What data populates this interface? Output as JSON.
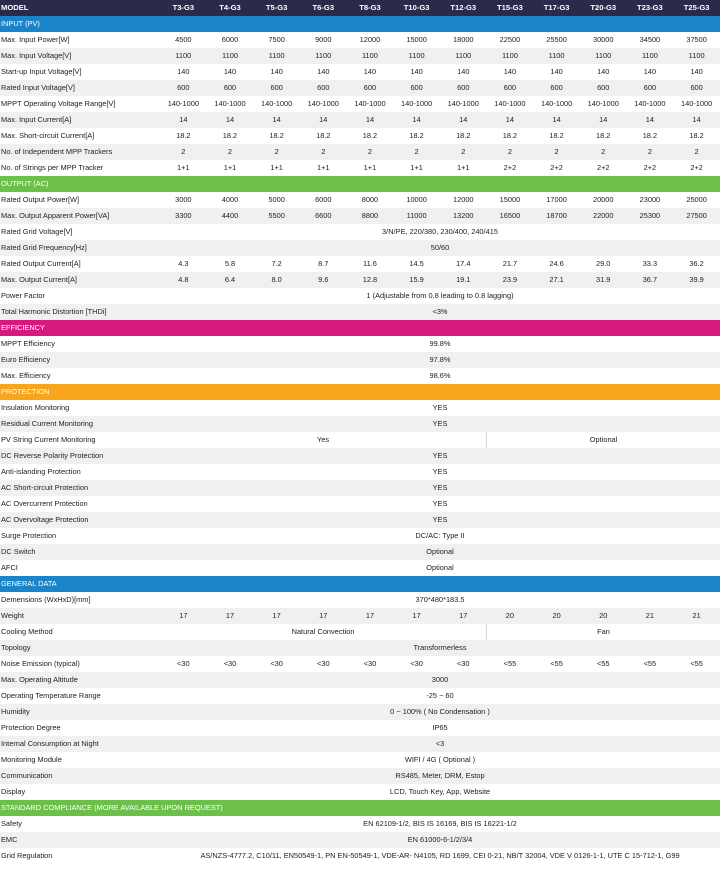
{
  "models": [
    "T3-G3",
    "T4-G3",
    "T5-G3",
    "T6-G3",
    "T8-G3",
    "T10-G3",
    "T12-G3",
    "T15-G3",
    "T17-G3",
    "T20-G3",
    "T23-G3",
    "T25-G3"
  ],
  "colors": {
    "input": "#1a84c9",
    "output": "#6cc04a",
    "efficiency": "#d6197f",
    "protection": "#f7a51c",
    "general": "#1a84c9",
    "compliance": "#6cc04a",
    "header": "#2a2a4a"
  },
  "rows": [
    {
      "t": "head",
      "label": "MODEL"
    },
    {
      "t": "sec",
      "label": "INPUT (PV)",
      "color": "#1a84c9"
    },
    {
      "t": "v",
      "label": "Max. Input Power[W]",
      "vals": [
        "4500",
        "6000",
        "7500",
        "9000",
        "12000",
        "15000",
        "18000",
        "22500",
        "25500",
        "30000",
        "34500",
        "37500"
      ]
    },
    {
      "t": "v",
      "label": "Max. Input Voltage[V]",
      "vals": [
        "1100",
        "1100",
        "1100",
        "1100",
        "1100",
        "1100",
        "1100",
        "1100",
        "1100",
        "1100",
        "1100",
        "1100"
      ]
    },
    {
      "t": "v",
      "label": "Start-up Input Voltage[V]",
      "vals": [
        "140",
        "140",
        "140",
        "140",
        "140",
        "140",
        "140",
        "140",
        "140",
        "140",
        "140",
        "140"
      ]
    },
    {
      "t": "v",
      "label": "Rated Input Voltage[V]",
      "vals": [
        "600",
        "600",
        "600",
        "600",
        "600",
        "600",
        "600",
        "600",
        "600",
        "600",
        "600",
        "600"
      ]
    },
    {
      "t": "v",
      "label": "MPPT Operating Voltage Range[V]",
      "vals": [
        "140-1000",
        "140-1000",
        "140-1000",
        "140-1000",
        "140-1000",
        "140-1000",
        "140-1000",
        "140-1000",
        "140-1000",
        "140-1000",
        "140-1000",
        "140-1000"
      ]
    },
    {
      "t": "v",
      "label": "Max. Input Current[A]",
      "vals": [
        "14",
        "14",
        "14",
        "14",
        "14",
        "14",
        "14",
        "14",
        "14",
        "14",
        "14",
        "14"
      ]
    },
    {
      "t": "v",
      "label": "Max. Short-circuit Current[A]",
      "vals": [
        "18.2",
        "18.2",
        "18.2",
        "18.2",
        "18.2",
        "18.2",
        "18.2",
        "18.2",
        "18.2",
        "18.2",
        "18.2",
        "18.2"
      ]
    },
    {
      "t": "v",
      "label": "No. of Independent MPP Trackers",
      "vals": [
        "2",
        "2",
        "2",
        "2",
        "2",
        "2",
        "2",
        "2",
        "2",
        "2",
        "2",
        "2"
      ]
    },
    {
      "t": "v",
      "label": "No. of Strings per MPP Tracker",
      "vals": [
        "1+1",
        "1+1",
        "1+1",
        "1+1",
        "1+1",
        "1+1",
        "1+1",
        "2+2",
        "2+2",
        "2+2",
        "2+2",
        "2+2"
      ]
    },
    {
      "t": "sec",
      "label": "OUTPUT (AC)",
      "color": "#6cc04a"
    },
    {
      "t": "v",
      "label": "Rated Output Power[W]",
      "vals": [
        "3000",
        "4000",
        "5000",
        "6000",
        "8000",
        "10000",
        "12000",
        "15000",
        "17000",
        "20000",
        "23000",
        "25000"
      ]
    },
    {
      "t": "v",
      "label": "Max. Output Apparent Power[VA]",
      "vals": [
        "3300",
        "4400",
        "5500",
        "6600",
        "8800",
        "11000",
        "13200",
        "16500",
        "18700",
        "22000",
        "25300",
        "27500"
      ]
    },
    {
      "t": "m",
      "label": "Rated Grid Voltage[V]",
      "val": "3/N/PE, 220/380, 230/400, 240/415"
    },
    {
      "t": "m",
      "label": "Rated Grid Frequency[Hz]",
      "val": "50/60"
    },
    {
      "t": "v",
      "label": "Rated Output Current[A]",
      "vals": [
        "4.3",
        "5.8",
        "7.2",
        "8.7",
        "11.6",
        "14.5",
        "17.4",
        "21.7",
        "24.6",
        "29.0",
        "33.3",
        "36.2"
      ]
    },
    {
      "t": "v",
      "label": "Max. Output Current[A]",
      "vals": [
        "4.8",
        "6.4",
        "8.0",
        "9.6",
        "12.8",
        "15.9",
        "19.1",
        "23.9",
        "27.1",
        "31.9",
        "36.7",
        "39.9"
      ]
    },
    {
      "t": "m",
      "label": "Power Factor",
      "val": "1 (Adjustable from 0.8 leading to 0.8 lagging)"
    },
    {
      "t": "m",
      "label": "Total Harmonic Distortion [THDi]",
      "val": "<3%"
    },
    {
      "t": "sec",
      "label": "EFFICIENCY",
      "color": "#d6197f"
    },
    {
      "t": "m",
      "label": "MPPT Efficiency",
      "val": "99.8%"
    },
    {
      "t": "m",
      "label": "Euro Efficiency",
      "val": "97.8%"
    },
    {
      "t": "m",
      "label": "Max. Efficiency",
      "val": "98.6%"
    },
    {
      "t": "sec",
      "label": "PROTECTION",
      "color": "#f7a51c"
    },
    {
      "t": "m",
      "label": "Insulation Monitoring",
      "val": "YES"
    },
    {
      "t": "m",
      "label": "Residual Current Monitoring",
      "val": "YES"
    },
    {
      "t": "s",
      "label": "PV String Current Monitoring",
      "a": "Yes",
      "b": "Optional"
    },
    {
      "t": "m",
      "label": "DC Reverse Polarity Protection",
      "val": "YES"
    },
    {
      "t": "m",
      "label": "Anti-islanding Protection",
      "val": "YES"
    },
    {
      "t": "m",
      "label": "AC Short-circuit Protection",
      "val": "YES"
    },
    {
      "t": "m",
      "label": "AC Overcurrent Protection",
      "val": "YES"
    },
    {
      "t": "m",
      "label": "AC Overvoltage Protection",
      "val": "YES"
    },
    {
      "t": "m",
      "label": "Surge Protection",
      "val": "DC/AC: Type II"
    },
    {
      "t": "m",
      "label": "DC Switch",
      "val": "Optional"
    },
    {
      "t": "m",
      "label": "AFCI",
      "val": "Optional"
    },
    {
      "t": "sec",
      "label": "GENERAL DATA",
      "color": "#1a84c9"
    },
    {
      "t": "m",
      "label": "Demensions (WxHxD)[mm]",
      "val": "370*480*183.5"
    },
    {
      "t": "v",
      "label": "Weight",
      "vals": [
        "17",
        "17",
        "17",
        "17",
        "17",
        "17",
        "17",
        "20",
        "20",
        "20",
        "21",
        "21"
      ]
    },
    {
      "t": "s",
      "label": "Cooling Method",
      "a": "Natural Convection",
      "b": "Fan"
    },
    {
      "t": "m",
      "label": "Topology",
      "val": "Transformerless"
    },
    {
      "t": "v",
      "label": "Noise Emission (typical)",
      "vals": [
        "<30",
        "<30",
        "<30",
        "<30",
        "<30",
        "<30",
        "<30",
        "<55",
        "<55",
        "<55",
        "<55",
        "<55"
      ]
    },
    {
      "t": "m",
      "label": "Max. Operating Altitude",
      "val": "3000"
    },
    {
      "t": "m",
      "label": "Operating Temperature Range",
      "val": "-25 ~ 60"
    },
    {
      "t": "m",
      "label": "Humidity",
      "val": "0 ~ 100% ( No Condensation )"
    },
    {
      "t": "m",
      "label": "Protection Degree",
      "val": "IP65"
    },
    {
      "t": "m",
      "label": "Internal Consumption at Night",
      "val": "<3"
    },
    {
      "t": "m",
      "label": "Monitoring Module",
      "val": "WIFI / 4G ( Optional )"
    },
    {
      "t": "m",
      "label": "Communication",
      "val": "RS485, Meter, DRM, Estop"
    },
    {
      "t": "m",
      "label": "Display",
      "val": "LCD, Touch Key, App, Website"
    },
    {
      "t": "sec",
      "label": "STANDARD COMPLIANCE (MORE AVAILABLE UPON REQUEST)",
      "color": "#6cc04a"
    },
    {
      "t": "m",
      "label": "Safety",
      "val": "EN 62109-1/2, BIS IS 16169, BIS IS 16221-1/2"
    },
    {
      "t": "m",
      "label": "EMC",
      "val": "EN 61000-6-1/2/3/4"
    },
    {
      "t": "m",
      "label": "Grid Regulation",
      "val": "AS/NZS-4777.2, C10/11, EN50549-1, PN EN-50549-1, VDE-AR- N4105, RD 1699, CEI 0-21, NB/T 32004,  VDE V 0126-1-1, UTE C 15-712-1, G99"
    }
  ]
}
